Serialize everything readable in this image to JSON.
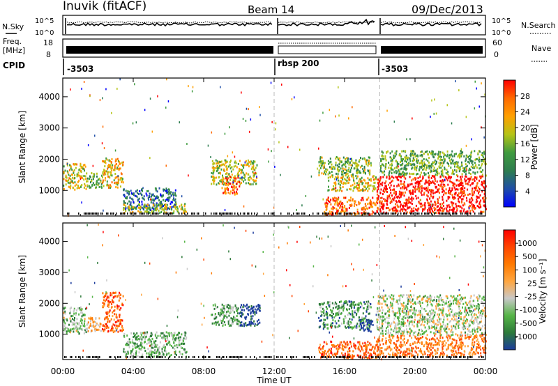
{
  "header": {
    "station": "Inuvik (fitACF)",
    "beam": "Beam 14",
    "date": "09/Dec/2013"
  },
  "sky_panel": {
    "left_label": "N.Sky",
    "right_label": "N.Search",
    "left_ticks": [
      "10^5",
      "10^0"
    ],
    "right_ticks": [
      "10^5",
      "10^0"
    ]
  },
  "freq_panel": {
    "left_label_1": "Freq.",
    "left_label_2": "[MHz]",
    "right_label": "Nave",
    "left_ticks": [
      "18",
      "8"
    ],
    "right_ticks": [
      "60",
      "0"
    ]
  },
  "cpid": {
    "label": "CPID",
    "segments": [
      "-3503",
      "rbsp 200",
      "-3503"
    ]
  },
  "colors": {
    "power_scale": [
      "#0000ff",
      "#1f4ea8",
      "#2e7d4f",
      "#3f9b3f",
      "#b5c416",
      "#ffa000",
      "#ff6a00",
      "#ff0000"
    ],
    "velocity_scale": [
      "#1c3c9c",
      "#2d7a3a",
      "#56b547",
      "#c8c8c8",
      "#ffa640",
      "#ff7a00",
      "#ff4500",
      "#ff0000"
    ]
  },
  "chart_data": [
    {
      "type": "heatmap",
      "name": "power-panel",
      "xlabel": "",
      "ylabel": "Slant Range [km]",
      "x_ticks": [
        "00:00",
        "04:00",
        "08:00",
        "12:00",
        "16:00",
        "20:00",
        "00:00"
      ],
      "y_ticks": [
        "4000",
        "3000",
        "2000",
        "1000"
      ],
      "xlim": [
        0,
        24
      ],
      "ylim": [
        180,
        4600
      ],
      "colorbar_label": "Power [dB]",
      "colorbar_ticks": [
        "28",
        "24",
        "20",
        "16",
        "12",
        "8",
        "4"
      ],
      "regions": [
        {
          "x0": 0.0,
          "x1": 1.3,
          "y0": 1050,
          "y1": 1900,
          "level": 0.6
        },
        {
          "x0": 1.3,
          "x1": 2.2,
          "y0": 1100,
          "y1": 1600,
          "level": 0.45
        },
        {
          "x0": 2.2,
          "x1": 3.4,
          "y0": 1100,
          "y1": 2100,
          "level": 0.65
        },
        {
          "x0": 3.4,
          "x1": 6.4,
          "y0": 400,
          "y1": 1100,
          "level": 0.25
        },
        {
          "x0": 3.4,
          "x1": 7.0,
          "y0": 300,
          "y1": 600,
          "level": 0.55
        },
        {
          "x0": 8.4,
          "x1": 11.0,
          "y0": 1200,
          "y1": 2000,
          "level": 0.55
        },
        {
          "x0": 9.0,
          "x1": 10.0,
          "y0": 900,
          "y1": 1500,
          "level": 0.8
        },
        {
          "x0": 14.5,
          "x1": 17.5,
          "y0": 1500,
          "y1": 2100,
          "level": 0.5
        },
        {
          "x0": 14.8,
          "x1": 17.9,
          "y0": 250,
          "y1": 800,
          "level": 0.8
        },
        {
          "x0": 15.0,
          "x1": 17.8,
          "y0": 1000,
          "y1": 1500,
          "level": 0.6
        },
        {
          "x0": 17.8,
          "x1": 24.0,
          "y0": 300,
          "y1": 1500,
          "level": 0.95
        },
        {
          "x0": 18.0,
          "x1": 24.0,
          "y0": 1500,
          "y1": 2300,
          "level": 0.45
        }
      ]
    },
    {
      "type": "heatmap",
      "name": "velocity-panel",
      "xlabel": "Time UT",
      "ylabel": "Slant Range [km]",
      "x_ticks": [
        "00:00",
        "04:00",
        "08:00",
        "12:00",
        "16:00",
        "20:00",
        "00:00"
      ],
      "y_ticks": [
        "4000",
        "3000",
        "2000",
        "1000"
      ],
      "xlim": [
        0,
        24
      ],
      "ylim": [
        180,
        4600
      ],
      "colorbar_label": "Velocity [m s⁻¹]",
      "colorbar_ticks": [
        "1000",
        "500",
        "100",
        "25",
        "-25",
        "-100",
        "-500",
        "-1000"
      ],
      "regions": [
        {
          "x0": 0.0,
          "x1": 1.3,
          "y0": 1050,
          "y1": 1900,
          "level": 0.35
        },
        {
          "x0": 1.3,
          "x1": 2.2,
          "y0": 1100,
          "y1": 1600,
          "level": 0.55
        },
        {
          "x0": 2.2,
          "x1": 3.4,
          "y0": 1100,
          "y1": 2400,
          "level": 0.75
        },
        {
          "x0": 3.4,
          "x1": 7.0,
          "y0": 300,
          "y1": 1100,
          "level": 0.3
        },
        {
          "x0": 8.4,
          "x1": 10.0,
          "y0": 1300,
          "y1": 2000,
          "level": 0.3
        },
        {
          "x0": 10.0,
          "x1": 11.2,
          "y0": 1300,
          "y1": 2000,
          "level": 0.05
        },
        {
          "x0": 14.5,
          "x1": 17.5,
          "y0": 1200,
          "y1": 2100,
          "level": 0.25
        },
        {
          "x0": 16.8,
          "x1": 17.6,
          "y0": 1100,
          "y1": 1500,
          "level": 0.0
        },
        {
          "x0": 14.5,
          "x1": 17.9,
          "y0": 250,
          "y1": 800,
          "level": 0.75
        },
        {
          "x0": 17.8,
          "x1": 24.0,
          "y0": 300,
          "y1": 1000,
          "level": 0.7
        },
        {
          "x0": 17.8,
          "x1": 24.0,
          "y0": 1000,
          "y1": 2300,
          "level": 0.4
        }
      ]
    }
  ]
}
